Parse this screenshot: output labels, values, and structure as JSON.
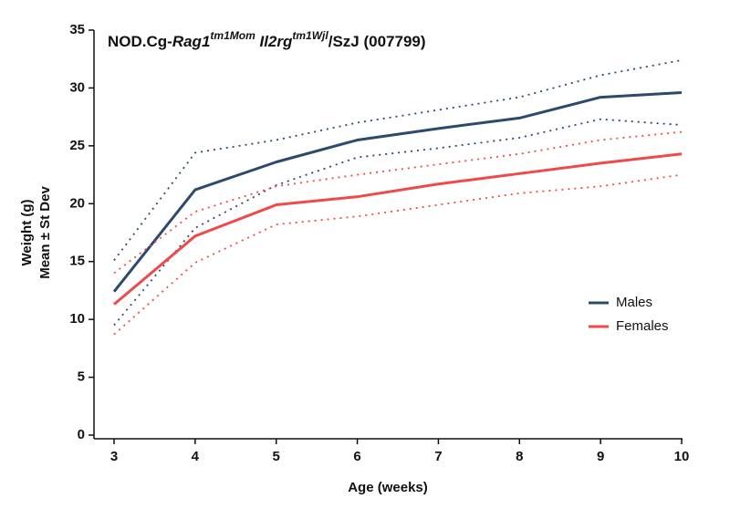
{
  "chart_data": {
    "type": "line",
    "title": [
      "NOD.Cg-",
      "Rag1",
      "tm1Mom",
      " ",
      "Il2rg",
      "tm1Wjl",
      "/SzJ (007799)"
    ],
    "x_label": "Age (weeks)",
    "y_label": [
      "Weight (g)",
      "Mean ± St Dev"
    ],
    "x": [
      3,
      4,
      5,
      6,
      7,
      8,
      9,
      10
    ],
    "xlim": [
      3,
      10
    ],
    "xticks": [
      3,
      4,
      5,
      6,
      7,
      8,
      9,
      10
    ],
    "ylim": [
      0,
      35
    ],
    "yticks": [
      0,
      5,
      10,
      15,
      20,
      25,
      30,
      35
    ],
    "legend": "right",
    "series": [
      {
        "name": "Males",
        "color": "#2c4a6e",
        "values": [
          12.4,
          21.2,
          23.6,
          25.5,
          26.5,
          27.4,
          29.2,
          29.6
        ],
        "upper": [
          15.1,
          24.4,
          25.5,
          27.0,
          28.1,
          29.2,
          31.1,
          32.4
        ],
        "lower": [
          9.5,
          17.9,
          21.6,
          24.0,
          24.8,
          25.7,
          27.3,
          26.8
        ]
      },
      {
        "name": "Females",
        "color": "#ef4a4a",
        "values": [
          11.3,
          17.2,
          19.9,
          20.6,
          21.7,
          22.6,
          23.5,
          24.3
        ],
        "upper": [
          14.0,
          19.3,
          21.5,
          22.5,
          23.4,
          24.3,
          25.5,
          26.2
        ],
        "lower": [
          8.7,
          14.9,
          18.2,
          18.9,
          19.9,
          20.9,
          21.5,
          22.5
        ]
      }
    ]
  }
}
